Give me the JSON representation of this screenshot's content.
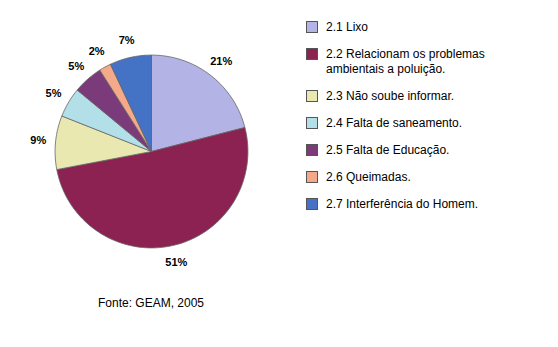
{
  "chart_data": {
    "type": "pie",
    "categories": [
      "2.1 Lixo",
      "2.2 Relacionam os problemas\nambientais a poluição.",
      "2.3 Não soube informar.",
      "2.4 Falta de saneamento.",
      "2.5 Falta de Educação.",
      "2.6 Queimadas.",
      "2.7 Interferência do Homem."
    ],
    "values": [
      21,
      51,
      9,
      5,
      5,
      2,
      7
    ],
    "value_labels": [
      "21%",
      "51%",
      "9%",
      "5%",
      "5%",
      "2%",
      "7%"
    ],
    "colors": [
      "#b3b3e6",
      "#8B2252",
      "#e8e8b0",
      "#b3e0e8",
      "#7B3B7B",
      "#f4a989",
      "#4472c4"
    ],
    "data_labels": true,
    "legend": "right",
    "source": "Fonte: GEAM, 2005"
  }
}
